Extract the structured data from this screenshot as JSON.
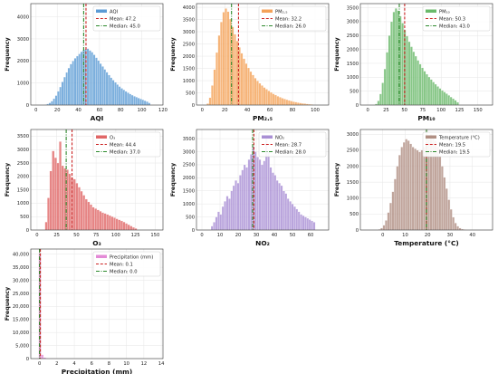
{
  "chart_data": [
    {
      "type": "bar",
      "xlabel": "AQI",
      "ylabel": "Frequency",
      "xlim": [
        -5,
        120
      ],
      "ylim": [
        0,
        4600
      ],
      "xticks": [
        0,
        20,
        40,
        60,
        80,
        100,
        120
      ],
      "yticks": [
        0,
        1000,
        2000,
        3000,
        4000
      ],
      "color": "#5b9bd5",
      "bins": {
        "start": 8,
        "width": 2
      },
      "values": [
        20,
        50,
        100,
        180,
        290,
        430,
        620,
        820,
        1050,
        1270,
        1480,
        1680,
        1860,
        2000,
        2120,
        2220,
        2320,
        2420,
        2500,
        2540,
        2560,
        2480,
        2400,
        2280,
        2150,
        2020,
        1880,
        1750,
        1620,
        1490,
        1360,
        1240,
        1130,
        1030,
        930,
        840,
        760,
        690,
        620,
        560,
        500,
        450,
        400,
        360,
        320,
        280,
        240,
        200,
        160,
        100
      ],
      "series": [
        {
          "name": "AQI"
        }
      ],
      "mean": 47.2,
      "median": 45.0,
      "mean_label": "Mean: 47.2",
      "median_label": "Median: 45.0"
    },
    {
      "type": "bar",
      "xlabel": "PM₂.₅",
      "ylabel": "Frequency",
      "xlim": [
        -5,
        112
      ],
      "ylim": [
        0,
        4150
      ],
      "xticks": [
        0,
        20,
        40,
        60,
        80,
        100
      ],
      "yticks": [
        0,
        500,
        1000,
        1500,
        2000,
        2500,
        3000,
        3500,
        4000
      ],
      "color": "#f4a259",
      "bins": {
        "start": 4,
        "width": 2
      },
      "values": [
        60,
        300,
        800,
        1450,
        2150,
        2850,
        3400,
        3800,
        3950,
        3820,
        3520,
        3200,
        2900,
        2620,
        2360,
        2120,
        1900,
        1700,
        1520,
        1370,
        1230,
        1100,
        990,
        890,
        800,
        720,
        650,
        580,
        520,
        460,
        410,
        360,
        320,
        280,
        250,
        220,
        190,
        165,
        140,
        120,
        100,
        85,
        70,
        58,
        45,
        35,
        25
      ],
      "series": [
        {
          "name": "PM₂.₅"
        }
      ],
      "mean": 32.2,
      "median": 26.0,
      "mean_label": "Mean: 32.2",
      "median_label": "Median: 26.0"
    },
    {
      "type": "bar",
      "xlabel": "PM₁₀",
      "ylabel": "Frequency",
      "xlim": [
        -10,
        170
      ],
      "ylim": [
        0,
        3650
      ],
      "xticks": [
        0,
        25,
        50,
        75,
        100,
        125,
        150
      ],
      "yticks": [
        0,
        500,
        1000,
        1500,
        2000,
        2500,
        3000,
        3500
      ],
      "color": "#6ab96a",
      "bins": {
        "start": 10,
        "width": 3
      },
      "values": [
        40,
        150,
        400,
        800,
        1300,
        1900,
        2500,
        3000,
        3350,
        3480,
        3400,
        3200,
        2950,
        2700,
        2480,
        2280,
        2100,
        1920,
        1760,
        1610,
        1470,
        1340,
        1220,
        1110,
        1010,
        920,
        830,
        750,
        670,
        600,
        530,
        470,
        410,
        350,
        290,
        230,
        170,
        100
      ],
      "series": [
        {
          "name": "PM₁₀"
        }
      ],
      "mean": 50.3,
      "median": 43.0,
      "mean_label": "Mean: 50.3",
      "median_label": "Median: 43.0"
    },
    {
      "type": "bar",
      "xlabel": "O₃",
      "ylabel": "Frequency",
      "xlim": [
        -8,
        160
      ],
      "ylim": [
        0,
        3750
      ],
      "xticks": [
        0,
        25,
        50,
        75,
        100,
        125,
        150
      ],
      "yticks": [
        0,
        500,
        1000,
        1500,
        2000,
        2500,
        3000,
        3500
      ],
      "color": "#e06666",
      "bins": {
        "start": 10,
        "width": 3
      },
      "values": [
        300,
        1200,
        2200,
        2950,
        2700,
        2500,
        3300,
        2400,
        2300,
        2250,
        2100,
        1950,
        1900,
        1750,
        1600,
        1450,
        1300,
        1150,
        1050,
        950,
        850,
        800,
        750,
        700,
        650,
        620,
        580,
        540,
        500,
        460,
        420,
        380,
        340,
        300,
        250,
        200,
        150,
        100,
        60
      ],
      "series": [
        {
          "name": "O₃"
        }
      ],
      "mean": 44.4,
      "median": 37.0,
      "mean_label": "Mean: 44.4",
      "median_label": "Median: 37.0"
    },
    {
      "type": "bar",
      "xlabel": "NO₂",
      "ylabel": "Frequency",
      "xlim": [
        -3,
        70
      ],
      "ylim": [
        0,
        3850
      ],
      "xticks": [
        0,
        10,
        20,
        30,
        40,
        50,
        60
      ],
      "yticks": [
        0,
        500,
        1000,
        1500,
        2000,
        2500,
        3000,
        3500
      ],
      "color": "#a98fd4",
      "bins": {
        "start": 5,
        "width": 1.2
      },
      "values": [
        150,
        300,
        500,
        700,
        600,
        900,
        1100,
        1300,
        1200,
        1500,
        1700,
        1900,
        1800,
        2100,
        2300,
        2500,
        2400,
        2700,
        2900,
        3200,
        3000,
        2800,
        2700,
        2500,
        2650,
        3500,
        3000,
        2400,
        2200,
        2100,
        1900,
        1800,
        1700,
        1500,
        1400,
        1200,
        1100,
        1000,
        900,
        800,
        700,
        600,
        550,
        500,
        450,
        400,
        350,
        300
      ],
      "series": [
        {
          "name": "NO₂"
        }
      ],
      "mean": 28.7,
      "median": 28.0,
      "mean_label": "Mean: 28.7",
      "median_label": "Median: 28.0"
    },
    {
      "type": "bar",
      "xlabel": "Temperature (°C)",
      "ylabel": "Frequency",
      "xlim": [
        -10,
        49
      ],
      "ylim": [
        0,
        3150
      ],
      "xticks": [
        0,
        10,
        20,
        30,
        40
      ],
      "yticks": [
        0,
        500,
        1000,
        1500,
        2000,
        2500,
        3000
      ],
      "color": "#b08f83",
      "bins": {
        "start": -2,
        "width": 1
      },
      "values": [
        20,
        60,
        150,
        300,
        550,
        850,
        1200,
        1600,
        2000,
        2350,
        2600,
        2750,
        2850,
        2800,
        2700,
        2600,
        2550,
        2500,
        2450,
        2500,
        2600,
        2700,
        2850,
        3000,
        2950,
        2800,
        2600,
        2300,
        2000,
        1650,
        1300,
        950,
        650,
        400,
        220,
        120,
        60,
        30,
        15,
        8,
        4,
        2
      ],
      "series": [
        {
          "name": "Temperature (°C)"
        }
      ],
      "mean": 19.5,
      "median": 19.5,
      "mean_label": "Mean: 19.5",
      "median_label": "Median: 19.5"
    },
    {
      "type": "bar",
      "xlabel": "Precipitation (mm)",
      "ylabel": "Frequency",
      "xlim": [
        -1,
        14.2
      ],
      "ylim": [
        0,
        42000
      ],
      "xticks": [
        0,
        2,
        4,
        6,
        8,
        10,
        12,
        14
      ],
      "yticks": [
        0,
        5000,
        10000,
        15000,
        20000,
        25000,
        30000,
        35000,
        40000
      ],
      "ytick_labels": [
        "0",
        "5,000",
        "10,000",
        "15,000",
        "20,000",
        "25,000",
        "30,000",
        "35,000",
        "40,000"
      ],
      "color": "#e38ad6",
      "bins": {
        "start": -0.1,
        "width": 0.28
      },
      "values": [
        40500,
        1500,
        400,
        150,
        60,
        30,
        15,
        10,
        6,
        4,
        3,
        2,
        2,
        1,
        1,
        1,
        1,
        1,
        1,
        1,
        1,
        1,
        1,
        1,
        1,
        1,
        1,
        1,
        1,
        1,
        1,
        1,
        1,
        1,
        1,
        1,
        1,
        1,
        1,
        1,
        1,
        1,
        1,
        1,
        1,
        1,
        1,
        1,
        1,
        1,
        1
      ],
      "series": [
        {
          "name": "Precipitation (mm)"
        }
      ],
      "mean": 0.1,
      "median": 0.0,
      "mean_label": "Mean: 0.1",
      "median_label": "Median: 0.0"
    }
  ],
  "colors": {
    "mean_line": "#cc2222",
    "median_line": "#2d8a2d",
    "grid": "#e6e6e6"
  }
}
